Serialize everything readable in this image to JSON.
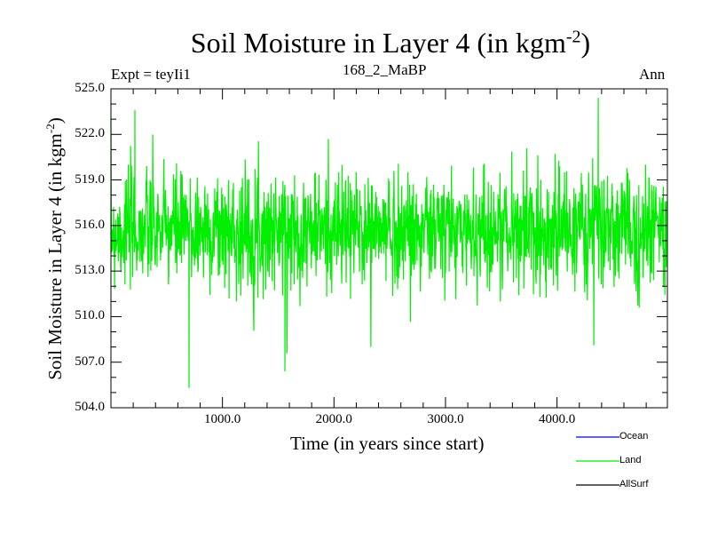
{
  "chart_data": {
    "type": "line",
    "title": "Soil Moisture in Layer 4 (in kgm",
    "title_sup": "-2",
    "title_end": ")",
    "subtitle_left": "Expt = teyIi1",
    "subtitle_center": "168_2_MaBP",
    "subtitle_right": "Ann",
    "xlabel": "Time (in years since start)",
    "ylabel": "Soil Moisture in Layer 4 (in kgm",
    "ylabel_sup": "-2",
    "ylabel_end": ")",
    "xlim": [
      0,
      4990
    ],
    "ylim": [
      504.0,
      525.0
    ],
    "xticks": [
      1000,
      2000,
      3000,
      4000
    ],
    "xtick_labels": [
      "1000.0",
      "2000.0",
      "3000.0",
      "4000.0"
    ],
    "yticks": [
      504,
      507,
      510,
      513,
      516,
      519,
      522,
      525
    ],
    "ytick_labels": [
      "504.0",
      "507.0",
      "510.0",
      "513.0",
      "516.0",
      "519.0",
      "522.0",
      "525.0"
    ],
    "grid": false,
    "legend_position": "bottom-right",
    "series": [
      {
        "name": "Ocean",
        "color": "#0000ff",
        "values": []
      },
      {
        "name": "Land",
        "color": "#00ee00",
        "generated": {
          "n": 4990,
          "mean": 515.7,
          "std": 1.9,
          "seed": 7
        },
        "notable_points": [
          [
            700,
            505.3
          ],
          [
            4370,
            524.4
          ],
          [
            1560,
            506.4
          ],
          [
            4330,
            508.1
          ],
          [
            215,
            523.6
          ]
        ]
      },
      {
        "name": "AllSurf",
        "color": "#000000",
        "values": []
      }
    ]
  }
}
